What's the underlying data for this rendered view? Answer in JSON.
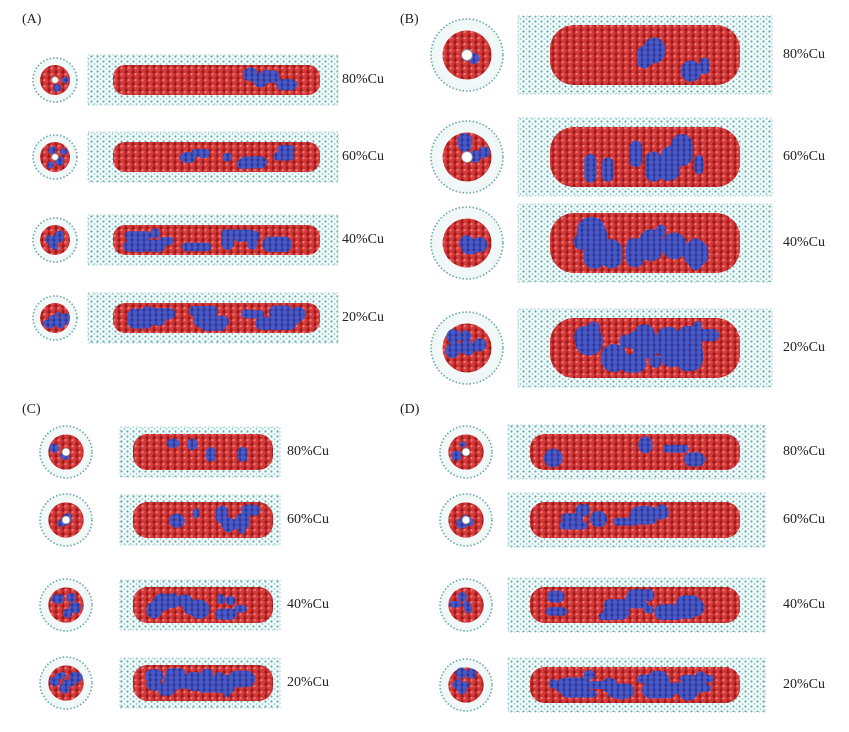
{
  "panels": [
    {
      "label": "(A)",
      "rows": [
        "80%Cu",
        "60%Cu",
        "40%Cu",
        "20%Cu"
      ]
    },
    {
      "label": "(B)",
      "rows": [
        "80%Cu",
        "60%Cu",
        "40%Cu",
        "20%Cu"
      ]
    },
    {
      "label": "(C)",
      "rows": [
        "80%Cu",
        "60%Cu",
        "40%Cu",
        "20%Cu"
      ]
    },
    {
      "label": "(D)",
      "rows": [
        "80%Cu",
        "60%Cu",
        "40%Cu",
        "20%Cu"
      ]
    }
  ]
}
